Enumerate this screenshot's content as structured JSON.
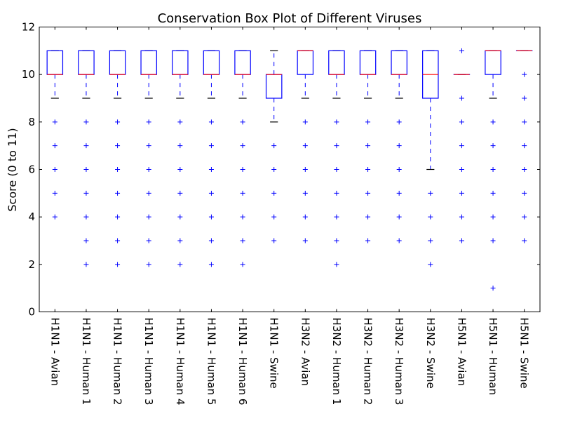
{
  "chart_data": {
    "type": "box",
    "title": "Conservation Box Plot of Different Viruses",
    "xlabel": "",
    "ylabel": "Score (0 to 11)",
    "ylim": [
      0,
      12
    ],
    "yticks": [
      0,
      2,
      4,
      6,
      8,
      10,
      12
    ],
    "grid": false,
    "colors": {
      "box": "#0000ff",
      "median": "#ff0000",
      "whisker": "#0000ff",
      "cap": "#000000",
      "outlier": "#0000ff"
    },
    "categories": [
      "H1N1 - Avian",
      "H1N1 - Human 1",
      "H1N1 - Human 2",
      "H1N1 - Human 3",
      "H1N1 - Human 4",
      "H1N1 - Human 5",
      "H1N1 - Human 6",
      "H1N1 - Swine",
      "H3N2 - Avian",
      "H3N2 - Human 1",
      "H3N2 - Human 2",
      "H3N2 - Human 3",
      "H3N2 - Swine",
      "H5N1 - Avian",
      "H5N1 - Human",
      "H5N1 - Swine"
    ],
    "boxes": [
      {
        "q1": 10,
        "median": 10,
        "q3": 11,
        "whisker_low": 9,
        "whisker_high": 11,
        "outliers": [
          8,
          7,
          6,
          5,
          4
        ]
      },
      {
        "q1": 10,
        "median": 10,
        "q3": 11,
        "whisker_low": 9,
        "whisker_high": 11,
        "outliers": [
          8,
          7,
          6,
          5,
          4,
          3,
          2
        ]
      },
      {
        "q1": 10,
        "median": 10,
        "q3": 11,
        "whisker_low": 9,
        "whisker_high": 11,
        "outliers": [
          8,
          7,
          6,
          5,
          4,
          3,
          2
        ]
      },
      {
        "q1": 10,
        "median": 10,
        "q3": 11,
        "whisker_low": 9,
        "whisker_high": 11,
        "outliers": [
          8,
          7,
          6,
          5,
          4,
          3,
          2
        ]
      },
      {
        "q1": 10,
        "median": 10,
        "q3": 11,
        "whisker_low": 9,
        "whisker_high": 11,
        "outliers": [
          8,
          7,
          6,
          5,
          4,
          3,
          2
        ]
      },
      {
        "q1": 10,
        "median": 10,
        "q3": 11,
        "whisker_low": 9,
        "whisker_high": 11,
        "outliers": [
          8,
          7,
          6,
          5,
          4,
          3,
          2
        ]
      },
      {
        "q1": 10,
        "median": 10,
        "q3": 11,
        "whisker_low": 9,
        "whisker_high": 11,
        "outliers": [
          8,
          7,
          6,
          5,
          4,
          3,
          2
        ]
      },
      {
        "q1": 9,
        "median": 10,
        "q3": 10,
        "whisker_low": 8,
        "whisker_high": 11,
        "outliers": [
          7,
          6,
          5,
          4,
          3
        ]
      },
      {
        "q1": 10,
        "median": 11,
        "q3": 11,
        "whisker_low": 9,
        "whisker_high": 11,
        "outliers": [
          8,
          7,
          6,
          5,
          4,
          3
        ]
      },
      {
        "q1": 10,
        "median": 10,
        "q3": 11,
        "whisker_low": 9,
        "whisker_high": 11,
        "outliers": [
          8,
          7,
          6,
          5,
          4,
          3,
          2
        ]
      },
      {
        "q1": 10,
        "median": 10,
        "q3": 11,
        "whisker_low": 9,
        "whisker_high": 11,
        "outliers": [
          8,
          7,
          6,
          5,
          4,
          3
        ]
      },
      {
        "q1": 10,
        "median": 10,
        "q3": 11,
        "whisker_low": 9,
        "whisker_high": 11,
        "outliers": [
          8,
          7,
          6,
          5,
          4,
          3
        ]
      },
      {
        "q1": 9,
        "median": 10,
        "q3": 11,
        "whisker_low": 6,
        "whisker_high": 11,
        "outliers": [
          5,
          4,
          3,
          2
        ]
      },
      {
        "q1": 10,
        "median": 10,
        "q3": 10,
        "whisker_low": 10,
        "whisker_high": 10,
        "outliers": [
          11,
          9,
          8,
          7,
          6,
          5,
          4,
          3
        ]
      },
      {
        "q1": 10,
        "median": 11,
        "q3": 11,
        "whisker_low": 9,
        "whisker_high": 11,
        "outliers": [
          8,
          7,
          6,
          5,
          4,
          3,
          1
        ]
      },
      {
        "q1": 11,
        "median": 11,
        "q3": 11,
        "whisker_low": 11,
        "whisker_high": 11,
        "outliers": [
          10,
          9,
          8,
          7,
          6,
          5,
          4,
          3
        ]
      }
    ]
  }
}
